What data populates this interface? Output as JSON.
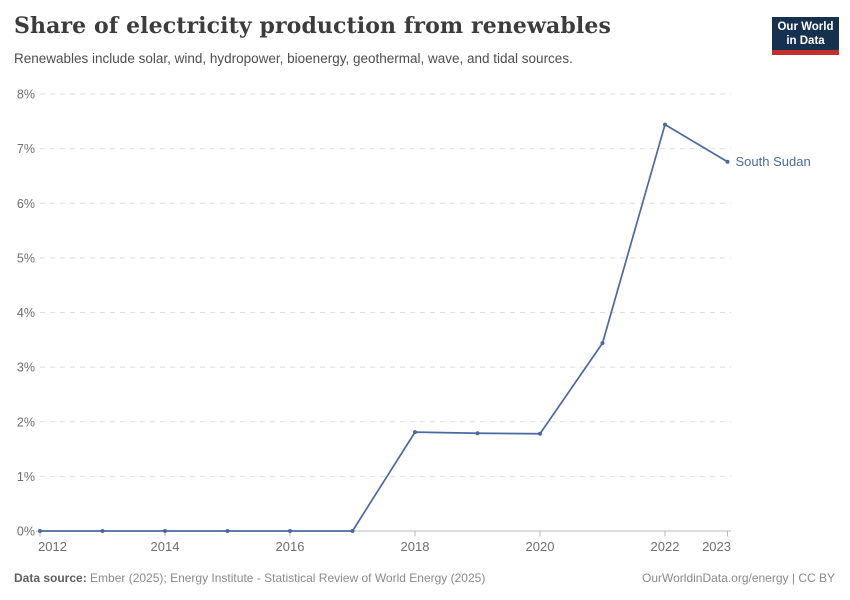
{
  "header": {
    "title": "Share of electricity production from renewables",
    "subtitle": "Renewables include solar, wind, hydropower, bioenergy, geothermal, wave, and tidal sources.",
    "logo_line1": "Our World",
    "logo_line2": "in Data"
  },
  "chart_data": {
    "type": "line",
    "title": "Share of electricity production from renewables",
    "x": [
      2012,
      2013,
      2014,
      2015,
      2016,
      2017,
      2018,
      2019,
      2020,
      2021,
      2022,
      2023
    ],
    "series": [
      {
        "name": "South Sudan",
        "color": "#4a69a2",
        "values": [
          0,
          0,
          0,
          0,
          0,
          0,
          1.81,
          1.79,
          1.78,
          3.44,
          7.44,
          6.76
        ]
      }
    ],
    "x_tick_labels": [
      "2012",
      "2014",
      "2016",
      "2018",
      "2020",
      "2022",
      "2023"
    ],
    "y_tick_labels": [
      "0%",
      "1%",
      "2%",
      "3%",
      "4%",
      "5%",
      "6%",
      "7%",
      "8%"
    ],
    "xlim": [
      2012,
      2023
    ],
    "ylim": [
      0,
      8
    ],
    "grid": "horizontal-dashed",
    "legend_position": "line-end",
    "colors": {
      "line": "#4a69a2",
      "grid": "#dedede",
      "axis": "#b9b9b9",
      "tick_label": "#6e6e6e",
      "series_label": "#4a69a2"
    }
  },
  "footer": {
    "source_label": "Data source:",
    "source_text": " Ember (2025); Energy Institute - Statistical Review of World Energy (2025)",
    "right_text": "OurWorldinData.org/energy | CC BY"
  }
}
